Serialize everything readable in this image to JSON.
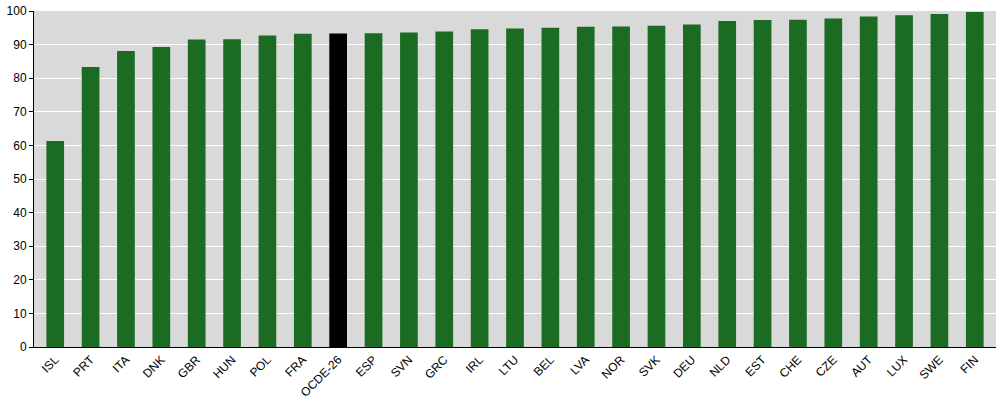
{
  "chart_data": {
    "type": "bar",
    "categories": [
      "ISL",
      "PRT",
      "ITA",
      "DNK",
      "GBR",
      "HUN",
      "POL",
      "FRA",
      "OCDE-26",
      "ESP",
      "SVN",
      "GRC",
      "IRL",
      "LTU",
      "BEL",
      "LVA",
      "NOR",
      "SVK",
      "DEU",
      "NLD",
      "EST",
      "CHE",
      "CZE",
      "AUT",
      "LUX",
      "SWE",
      "FIN"
    ],
    "values": [
      61.3,
      83.3,
      88.1,
      89.3,
      91.5,
      91.6,
      92.7,
      93.2,
      93.3,
      93.4,
      93.6,
      93.9,
      94.6,
      94.8,
      95.0,
      95.3,
      95.4,
      95.6,
      96.0,
      97.0,
      97.3,
      97.4,
      97.8,
      98.4,
      98.7,
      99.1,
      99.7
    ],
    "colors": [
      "#1b6b22",
      "#1b6b22",
      "#1b6b22",
      "#1b6b22",
      "#1b6b22",
      "#1b6b22",
      "#1b6b22",
      "#1b6b22",
      "#000000",
      "#1b6b22",
      "#1b6b22",
      "#1b6b22",
      "#1b6b22",
      "#1b6b22",
      "#1b6b22",
      "#1b6b22",
      "#1b6b22",
      "#1b6b22",
      "#1b6b22",
      "#1b6b22",
      "#1b6b22",
      "#1b6b22",
      "#1b6b22",
      "#1b6b22",
      "#1b6b22",
      "#1b6b22",
      "#1b6b22"
    ],
    "ylim": [
      0,
      100
    ],
    "yticks": [
      0,
      10,
      20,
      30,
      40,
      50,
      60,
      70,
      80,
      90,
      100
    ],
    "grid": true
  }
}
